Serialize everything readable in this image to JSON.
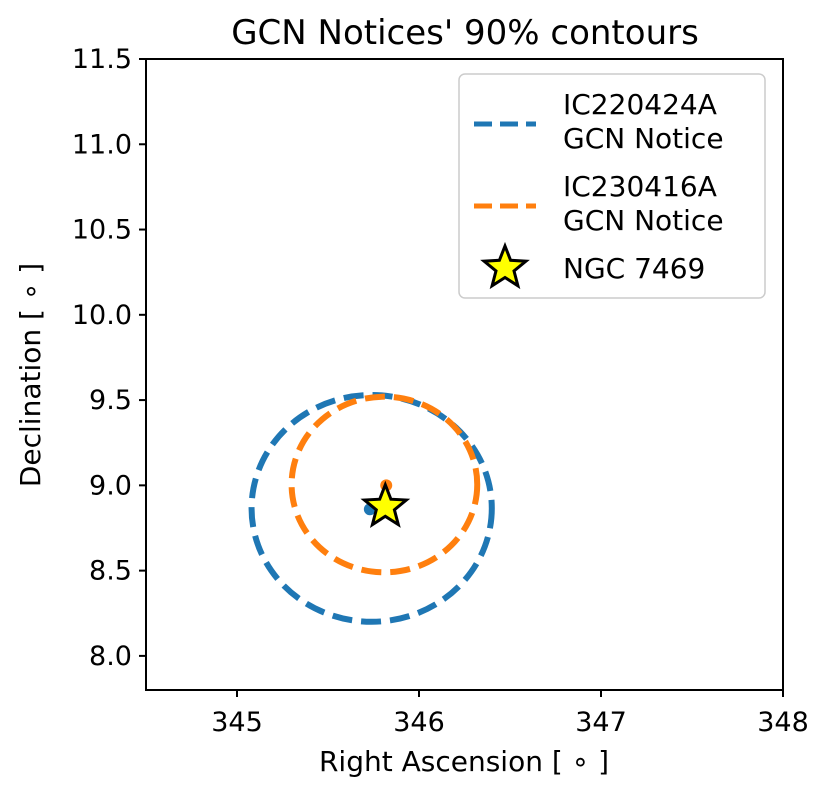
{
  "chart_data": {
    "type": "scatter",
    "title": "GCN Notices' 90% contours",
    "xlabel": "Right Ascension [$^\\circ$]",
    "xlabel_text": "Right Ascension [ ∘ ]",
    "ylabel_text": "Declination [ ∘ ]",
    "xlim": [
      344.5,
      348
    ],
    "ylim": [
      7.8,
      11.5
    ],
    "xticks": [
      345,
      346,
      347,
      348
    ],
    "xtick_labels": [
      "345",
      "346",
      "347",
      "348"
    ],
    "yticks": [
      8.0,
      8.5,
      9.0,
      9.5,
      10.0,
      10.5,
      11.0,
      11.5
    ],
    "ytick_labels": [
      "8.0",
      "8.5",
      "9.0",
      "9.5",
      "10.0",
      "10.5",
      "11.0",
      "11.5"
    ],
    "grid": false,
    "legend_position": "top-right",
    "series": [
      {
        "name_line1": "IC220424A",
        "name_line2": "GCN Notice",
        "kind": "contour",
        "color": "#1f77b4",
        "center": [
          345.73,
          8.87
        ],
        "ra_min": 345.08,
        "ra_max": 346.4,
        "dec_min": 8.2,
        "dec_max": 9.53,
        "center_point": [
          345.73,
          8.86
        ]
      },
      {
        "name_line1": "IC230416A",
        "name_line2": "GCN Notice",
        "kind": "contour",
        "color": "#ff7f0e",
        "center": [
          345.82,
          9.0
        ],
        "ra_min": 345.3,
        "ra_max": 346.32,
        "dec_min": 8.49,
        "dec_max": 9.52,
        "center_point": [
          345.82,
          9.0
        ]
      },
      {
        "name": "NGC 7469",
        "kind": "marker",
        "color": "#ffff00",
        "edge_color": "#000000",
        "point": [
          345.815,
          8.874
        ]
      }
    ]
  }
}
